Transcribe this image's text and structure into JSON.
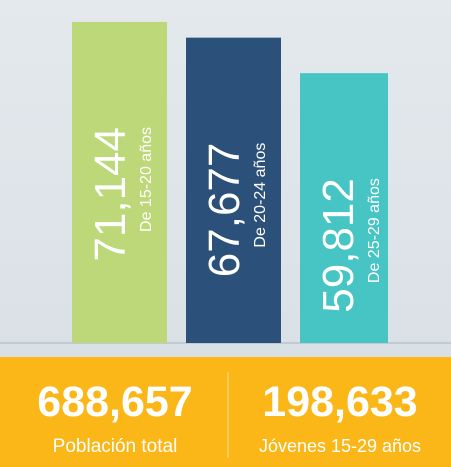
{
  "chart_data": {
    "type": "bar",
    "categories": [
      "De 15-20 años",
      "De 20-24 años",
      "De 25-29 años"
    ],
    "values": [
      71144,
      67677,
      59812
    ],
    "value_labels": [
      "71,144",
      "67,677",
      "59,812"
    ],
    "colors": [
      "#bdd878",
      "#2b5079",
      "#47c4c4"
    ]
  },
  "summary": [
    {
      "value": "688,657",
      "label": "Población total"
    },
    {
      "value": "198,633",
      "label": "Jóvenes 15-29 años"
    }
  ]
}
